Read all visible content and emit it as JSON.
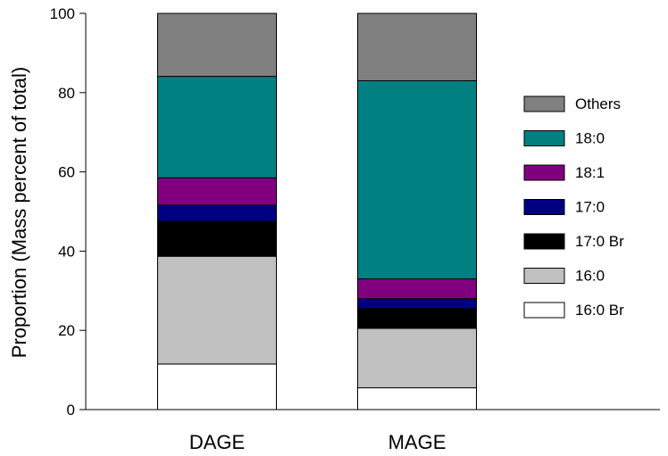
{
  "chart_data": {
    "type": "bar",
    "stacked": true,
    "categories": [
      "DAGE",
      "MAGE"
    ],
    "ylabel": "Proportion (Mass percent of total)",
    "xlabel": "",
    "ylim": [
      0,
      100
    ],
    "yticks": [
      0,
      20,
      40,
      60,
      80,
      100
    ],
    "legend_position": "right",
    "series": [
      {
        "name": "16:0 Br",
        "color": "#ffffff",
        "values": [
          11.5,
          5.5
        ]
      },
      {
        "name": "16:0",
        "color": "#c0c0c0",
        "values": [
          27.2,
          15.0
        ]
      },
      {
        "name": "17:0 Br",
        "color": "#000000",
        "values": [
          8.8,
          5.0
        ]
      },
      {
        "name": "17:0",
        "color": "#000080",
        "values": [
          4.1,
          2.5
        ]
      },
      {
        "name": "18:1",
        "color": "#800080",
        "values": [
          6.9,
          5.0
        ]
      },
      {
        "name": "18:0",
        "color": "#008080",
        "values": [
          25.6,
          50.0
        ]
      },
      {
        "name": "Others",
        "color": "#808080",
        "values": [
          15.9,
          17.0
        ]
      }
    ]
  }
}
